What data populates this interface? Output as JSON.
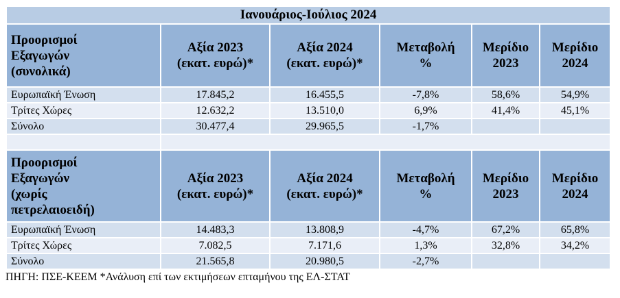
{
  "title": "Ιανουάριος-Ιούλιος 2024",
  "sections": [
    {
      "header": [
        "Προορισμοί\nΕξαγωγών\n(συνολικά)",
        "Αξία 2023\n(εκατ. ευρώ)*",
        "Αξία 2024\n(εκατ. ευρώ)*",
        "Μεταβολή\n%",
        "Μερίδιο\n2023",
        "Μερίδιο\n2024"
      ],
      "rows": [
        [
          "Ευρωπαϊκή Ένωση",
          "17.845,2",
          "16.455,5",
          "-7,8%",
          "58,6%",
          "54,9%"
        ],
        [
          "Τρίτες Χώρες",
          "12.632,2",
          "13.510,0",
          "6,9%",
          "41,4%",
          "45,1%"
        ],
        [
          "Σύνολο",
          "30.477,4",
          "29.965,5",
          "-1,7%"
        ]
      ]
    },
    {
      "header": [
        "Προορισμοί\nΕξαγωγών\n(χωρίς\nπετρελαιοειδή)",
        "Αξία 2023\n(εκατ. ευρώ)*",
        "Αξία 2024\n(εκατ. ευρώ)*",
        "Μεταβολή\n%",
        "Μερίδιο\n2023",
        "Μερίδιο\n2024"
      ],
      "rows": [
        [
          "Ευρωπαϊκή Ένωση",
          "14.483,3",
          "13.808,9",
          "-4,7%",
          "67,2%",
          "65,8%"
        ],
        [
          "Τρίτες Χώρες",
          "7.082,5",
          "7.171,6",
          "1,3%",
          "32,8%",
          "34,2%"
        ],
        [
          "Σύνολο",
          "21.565,8",
          "20.980,5",
          "-2,7%"
        ]
      ]
    }
  ],
  "source": "ΠΗΓΗ: ΠΣΕ-ΚΕΕΜ *Ανάλυση επί των εκτιμήσεων επταμήνου της ΕΛ-ΣΤΑΤ"
}
